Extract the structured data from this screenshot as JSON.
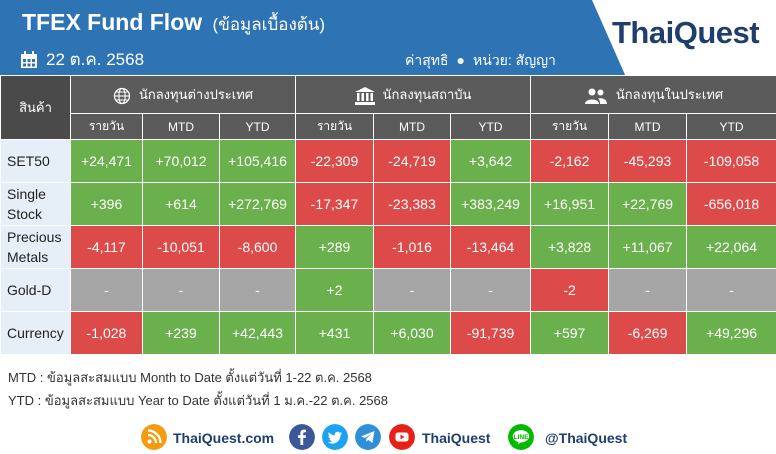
{
  "header": {
    "title": "TFEX Fund Flow",
    "subtitle": "(ข้อมูลเบื้องต้น)",
    "date": "22 ต.ค. 2568",
    "meta_left": "ค่าสุทธิ",
    "meta_right": "หน่วย: สัญญา",
    "logo": "ThaiQuest",
    "accent": "#2e74b5"
  },
  "table": {
    "product_header": "สินค้า",
    "groups": [
      {
        "label": "นักลงทุนต่างประเทศ",
        "icon": "globe-icon"
      },
      {
        "label": "นักลงทุนสถาบัน",
        "icon": "bank-icon"
      },
      {
        "label": "นักลงทุนในประเทศ",
        "icon": "people-icon"
      }
    ],
    "subheaders": [
      "รายวัน",
      "MTD",
      "YTD"
    ],
    "rows": [
      {
        "name": "SET50",
        "values": [
          "+24,471",
          "+70,012",
          "+105,416",
          "-22,309",
          "-24,719",
          "+3,642",
          "-2,162",
          "-45,293",
          "-109,058"
        ]
      },
      {
        "name": "Single Stock",
        "values": [
          "+396",
          "+614",
          "+272,769",
          "-17,347",
          "-23,383",
          "+383,249",
          "+16,951",
          "+22,769",
          "-656,018"
        ]
      },
      {
        "name": "Precious Metals",
        "values": [
          "-4,117",
          "-10,051",
          "-8,600",
          "+289",
          "-1,016",
          "-13,464",
          "+3,828",
          "+11,067",
          "+22,064"
        ]
      },
      {
        "name": "Gold-D",
        "values": [
          "-",
          "-",
          "-",
          "+2",
          "-",
          "-",
          "-2",
          "-",
          "-"
        ]
      },
      {
        "name": "Currency",
        "values": [
          "-1,028",
          "+239",
          "+42,443",
          "+431",
          "+6,030",
          "-91,739",
          "+597",
          "-6,269",
          "+49,296"
        ]
      }
    ],
    "colors": {
      "positive": "#6ab04c",
      "negative": "#dc4a4a",
      "neutral": "#a6a6a6"
    }
  },
  "notes": {
    "mtd": "MTD : ข้อมูลสะสมแบบ Month to Date ตั้งแต่วันที่ 1-22 ต.ค. 2568",
    "ytd": "YTD : ข้อมูลสะสมแบบ Year to Date ตั้งแต่วันที่ 1 ม.ค.-22 ต.ค. 2568"
  },
  "footer": {
    "website": "ThaiQuest.com",
    "youtube_name": "ThaiQuest",
    "line_label": "LINE",
    "line_id": "@ThaiQuest"
  }
}
